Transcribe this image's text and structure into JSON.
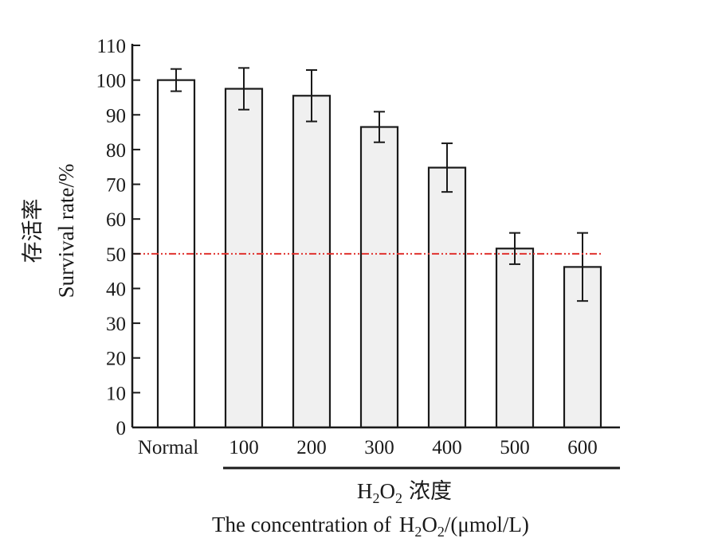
{
  "chart_data": {
    "type": "bar",
    "categories": [
      "Normal",
      "100",
      "200",
      "300",
      "400",
      "500",
      "600"
    ],
    "values": [
      100,
      97.5,
      95.5,
      86.5,
      74.8,
      51.5,
      46.2
    ],
    "errors": [
      3.2,
      6,
      7.4,
      4.4,
      7,
      4.5,
      9.8
    ],
    "ylim": [
      0,
      110
    ],
    "yticks": [
      0,
      10,
      20,
      30,
      40,
      50,
      60,
      70,
      80,
      90,
      100,
      110
    ],
    "ylabel_cn": "存活率",
    "ylabel_en": "Survival rate/%",
    "xlabel_cn": "浓度",
    "xlabel_en_prefix": "The concentration of",
    "xlabel_en_suffix": "/(μmol/L)",
    "reference_line": {
      "value": 50,
      "style": "dash-dot",
      "color": "#e0322e"
    },
    "colors": {
      "normal_bar": "#ffffff",
      "treated_bar": "#f0f0f0",
      "axis": "#1a1a1a"
    }
  }
}
